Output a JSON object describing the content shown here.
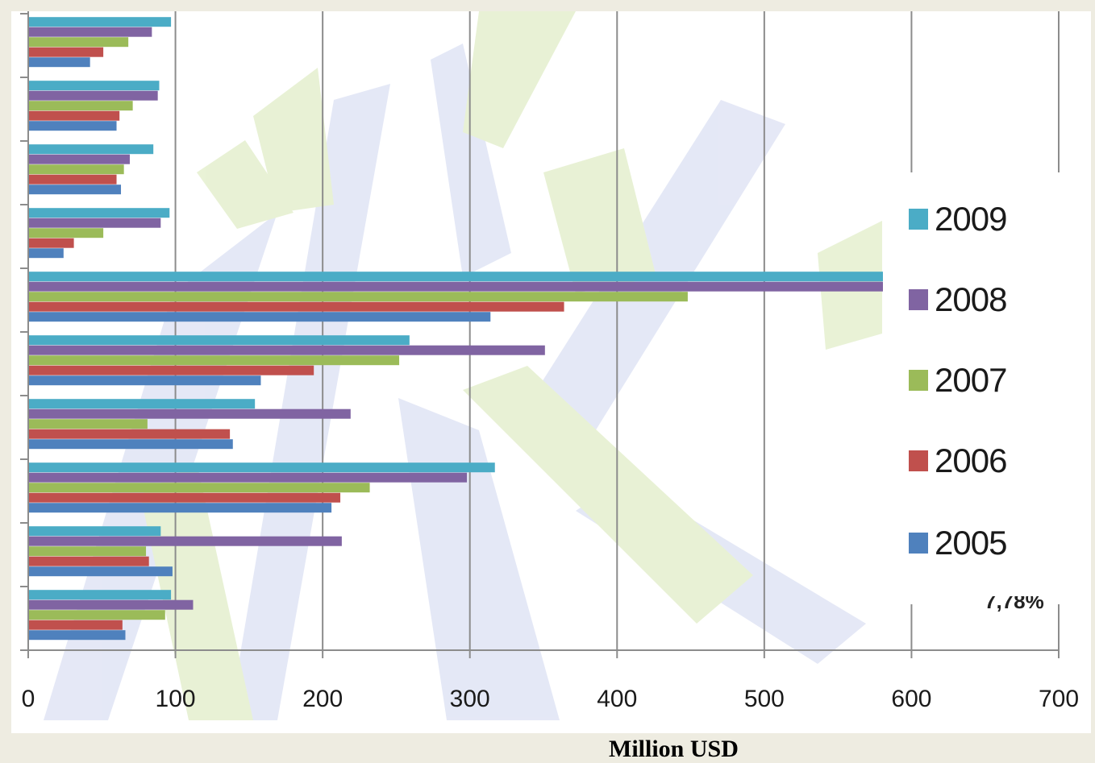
{
  "chart_data": {
    "type": "bar",
    "orientation": "horizontal",
    "title": "",
    "xlabel": "Million USD",
    "ylabel": "",
    "xlim": [
      0,
      700
    ],
    "x_ticks": [
      "0",
      "100",
      "200",
      "300",
      "400",
      "500",
      "600",
      "700"
    ],
    "grid": "vertical",
    "legend_position": "right",
    "categories": [
      "",
      "",
      "",
      "",
      "",
      "",
      "",
      "",
      "",
      ""
    ],
    "series": [
      {
        "name": "2009",
        "color": "#4bacc6",
        "values": [
          97,
          89,
          85,
          96,
          595,
          259,
          154,
          317,
          90,
          97
        ]
      },
      {
        "name": "2008",
        "color": "#8064a2",
        "values": [
          84,
          88,
          69,
          90,
          595,
          351,
          219,
          298,
          213,
          112
        ]
      },
      {
        "name": "2007",
        "color": "#9bbb59",
        "values": [
          68,
          71,
          65,
          51,
          448,
          252,
          81,
          232,
          80,
          93
        ]
      },
      {
        "name": "2006",
        "color": "#c0504d",
        "values": [
          51,
          62,
          60,
          31,
          364,
          194,
          137,
          212,
          82,
          64
        ]
      },
      {
        "name": "2005",
        "color": "#4f81bd",
        "values": [
          42,
          60,
          63,
          24,
          314,
          158,
          139,
          206,
          98,
          66
        ]
      }
    ],
    "annotations": [
      "7,78%"
    ]
  }
}
